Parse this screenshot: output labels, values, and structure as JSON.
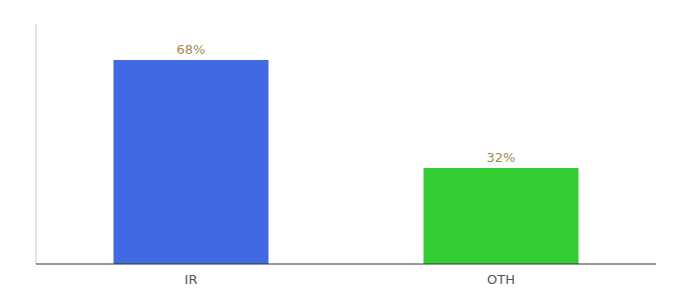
{
  "chart_data": {
    "type": "bar",
    "categories": [
      "IR",
      "OTH"
    ],
    "values": [
      68,
      32
    ],
    "colors": [
      "#4169e1",
      "#33cc33"
    ],
    "ylim": [
      0,
      80
    ],
    "data_labels": true,
    "value_labels": [
      "68%",
      "32%"
    ],
    "tick_labels": "x",
    "grid": false
  }
}
